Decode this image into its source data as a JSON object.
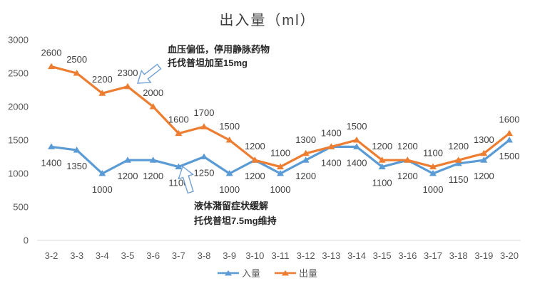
{
  "chart_data": {
    "type": "line",
    "title": "出入量（ml）",
    "categories": [
      "3-2",
      "3-3",
      "3-4",
      "3-5",
      "3-6",
      "3-7",
      "3-8",
      "3-9",
      "3-10",
      "3-11",
      "3-12",
      "3-13",
      "3-14",
      "3-15",
      "3-16",
      "3-17",
      "3-18",
      "3-19",
      "3-20"
    ],
    "series": [
      {
        "name": "入量",
        "color": "#5B9BD5",
        "values": [
          1400,
          1350,
          1000,
          1200,
          1200,
          1100,
          1250,
          1000,
          1200,
          1000,
          1200,
          1400,
          1400,
          1100,
          1200,
          1000,
          1150,
          1200,
          1500
        ]
      },
      {
        "name": "出量",
        "color": "#ED7D31",
        "values": [
          2600,
          2500,
          2200,
          2300,
          2000,
          1600,
          1700,
          1500,
          1200,
          1100,
          1300,
          1400,
          1500,
          1200,
          1200,
          1100,
          1200,
          1300,
          1600
        ]
      }
    ],
    "ylim": [
      0,
      3000
    ],
    "y_ticks": [
      3000,
      2500,
      2000,
      1500,
      1000,
      500,
      0
    ],
    "grid": false,
    "data_labels": true,
    "legend_position": "bottom",
    "colors": {
      "axis_line": "#D9D9D9",
      "tick_label": "#595959",
      "data_label": "#404040",
      "arrow_outline": "#71A0D6"
    }
  },
  "annotations": {
    "top": {
      "line1": "血压偏低，停用静脉药物",
      "line2": "托伐普坦加至15mg"
    },
    "bottom": {
      "line1": "液体潴留症状缓解",
      "line2": "托伐普坦7.5mg维持"
    }
  }
}
